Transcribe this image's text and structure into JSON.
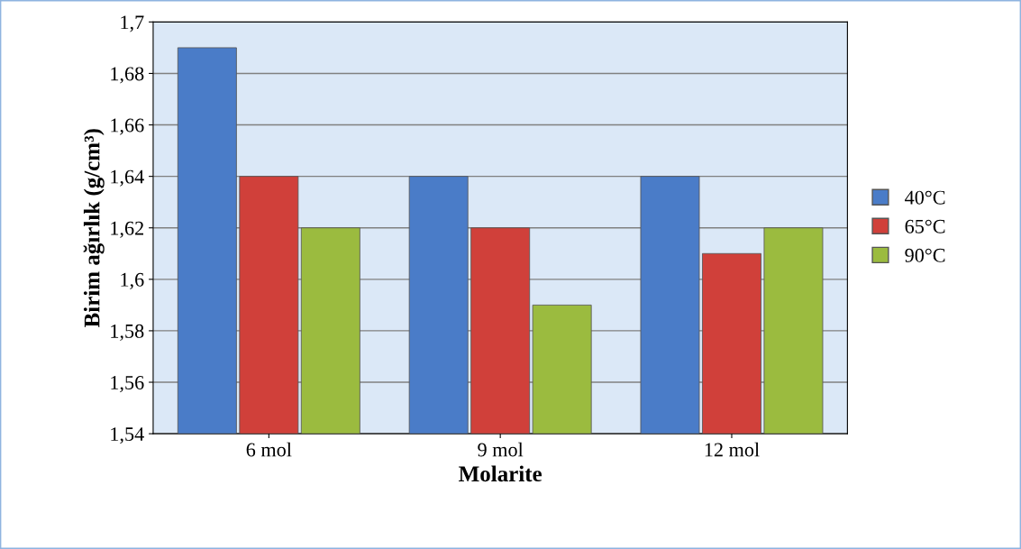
{
  "chart_data": {
    "type": "bar",
    "xlabel": "Molarite",
    "ylabel": "Birim ağırlık (g/cm³)",
    "categories": [
      "6 mol",
      "9 mol",
      "12 mol"
    ],
    "series": [
      {
        "name": "40°C",
        "color": "#4a7cc8",
        "values": [
          1.69,
          1.64,
          1.64
        ]
      },
      {
        "name": "65°C",
        "color": "#d0403a",
        "values": [
          1.64,
          1.62,
          1.61
        ]
      },
      {
        "name": "90°C",
        "color": "#9bbb3f",
        "values": [
          1.62,
          1.59,
          1.62
        ]
      }
    ],
    "ylim": [
      1.54,
      1.7
    ],
    "yticks": [
      {
        "value": 1.54,
        "label": "1,54"
      },
      {
        "value": 1.56,
        "label": "1,56"
      },
      {
        "value": 1.58,
        "label": "1,58"
      },
      {
        "value": 1.6,
        "label": "1,6"
      },
      {
        "value": 1.62,
        "label": "1,62"
      },
      {
        "value": 1.64,
        "label": "1,64"
      },
      {
        "value": 1.66,
        "label": "1,66"
      },
      {
        "value": 1.68,
        "label": "1,68"
      },
      {
        "value": 1.7,
        "label": "1,7"
      }
    ],
    "grid": "y",
    "legend": "right"
  }
}
